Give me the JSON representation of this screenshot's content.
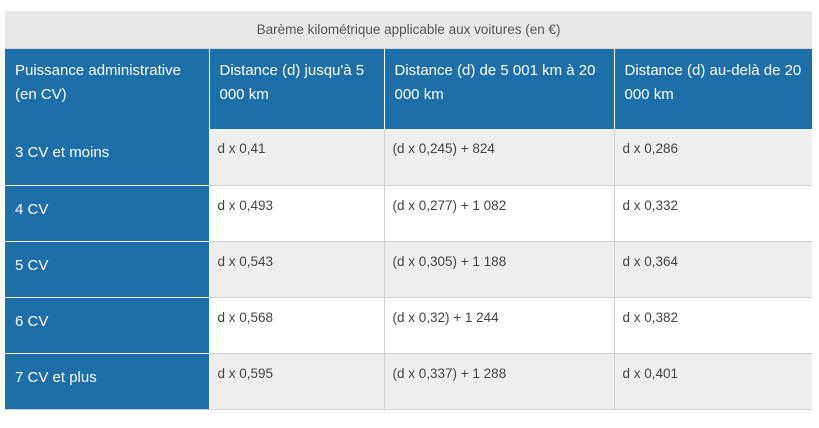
{
  "table": {
    "caption": "Barème kilométrique applicable aux voitures (en €)",
    "headers": [
      "Puissance administrative (en CV)",
      "Distance (d) jusqu'à 5 000 km",
      "Distance (d) de 5 001 km à 20 000 km",
      "Distance (d) au-delà de 20 000 km"
    ],
    "rows": [
      [
        "3 CV et moins",
        "d x 0,41",
        "(d x 0,245) + 824",
        "d x 0,286"
      ],
      [
        "4 CV",
        "d x 0,493",
        "(d x 0,277) + 1 082",
        "d x 0,332"
      ],
      [
        "5 CV",
        "d x 0,543",
        "(d x 0,305) + 1 188",
        "d x 0,364"
      ],
      [
        "6 CV",
        "d x 0,568",
        "(d x 0,32) + 1 244",
        "d x 0,382"
      ],
      [
        "7 CV et plus",
        "d x 0,595",
        "(d x 0,337) + 1 288",
        "d x 0,401"
      ]
    ]
  },
  "colors": {
    "header_blue": "#1d6faa",
    "caption_bg": "#e8e8e8",
    "alt_row_bg": "#efefef"
  }
}
